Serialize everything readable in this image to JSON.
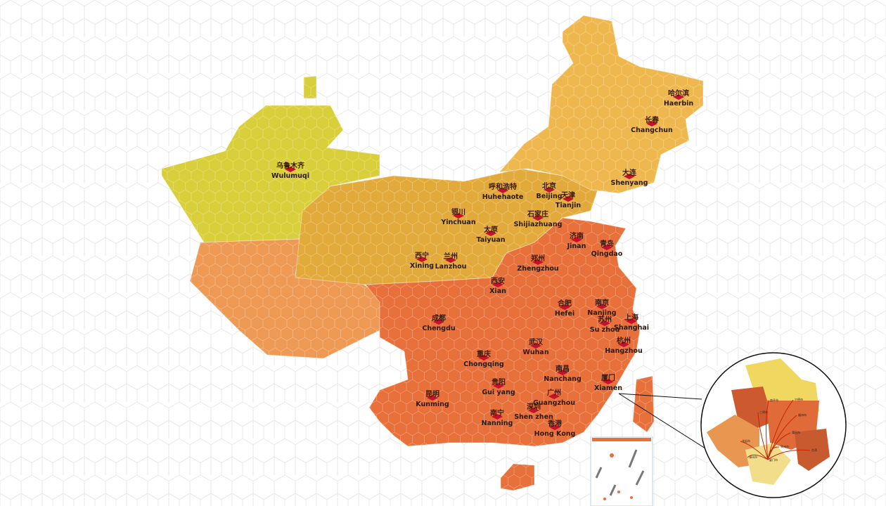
{
  "map": {
    "colors": {
      "northwest": "#d9cf3a",
      "tibet": "#ee9a55",
      "central": "#e2aa3a",
      "northeast": "#efb84e",
      "southeast": "#e8703a",
      "marker": "#c8102e",
      "background_grid": "#e6e6e6"
    },
    "cities": [
      {
        "cn": "哈尔滨",
        "en": "Haerbin"
      },
      {
        "cn": "长春",
        "en": "Changchun"
      },
      {
        "cn": "大连",
        "en": "Shenyang"
      },
      {
        "cn": "乌鲁木齐",
        "en": "Wulumuqi"
      },
      {
        "cn": "呼和浩特",
        "en": "Huhehaote"
      },
      {
        "cn": "北京",
        "en": "Beijing"
      },
      {
        "cn": "天津",
        "en": "Tianjin"
      },
      {
        "cn": "银川",
        "en": "Yinchuan"
      },
      {
        "cn": "石家庄",
        "en": "Shijiazhuang"
      },
      {
        "cn": "太原",
        "en": "Taiyuan"
      },
      {
        "cn": "济南",
        "en": "Jinan"
      },
      {
        "cn": "青岛",
        "en": "Qingdao"
      },
      {
        "cn": "西宁",
        "en": "Xining"
      },
      {
        "cn": "兰州",
        "en": "Lanzhou"
      },
      {
        "cn": "郑州",
        "en": "Zhengzhou"
      },
      {
        "cn": "西安",
        "en": "Xian"
      },
      {
        "cn": "合肥",
        "en": "Hefei"
      },
      {
        "cn": "南京",
        "en": "Nanjing"
      },
      {
        "cn": "苏州",
        "en": "Su zhou"
      },
      {
        "cn": "上海",
        "en": "Shanghai"
      },
      {
        "cn": "成都",
        "en": "Chengdu"
      },
      {
        "cn": "杭州",
        "en": "Hangzhou"
      },
      {
        "cn": "武汉",
        "en": "Wuhan"
      },
      {
        "cn": "重庆",
        "en": "Chongqing"
      },
      {
        "cn": "南昌",
        "en": "Nanchang"
      },
      {
        "cn": "厦门",
        "en": "Xiamen"
      },
      {
        "cn": "贵阳",
        "en": "Gui yang"
      },
      {
        "cn": "昆明",
        "en": "Kunming"
      },
      {
        "cn": "广州",
        "en": "Guangzhou"
      },
      {
        "cn": "深圳",
        "en": "Shen zhen"
      },
      {
        "cn": "南宁",
        "en": "Nanning"
      },
      {
        "cn": "香港",
        "en": "Hong Kong"
      }
    ]
  },
  "inset": {
    "hub": "厦门市",
    "cities": [
      "南平市",
      "宁德市",
      "三明市",
      "福州市",
      "莆田市",
      "龙岩市",
      "泉州市",
      "漳州市",
      "台湾"
    ]
  }
}
